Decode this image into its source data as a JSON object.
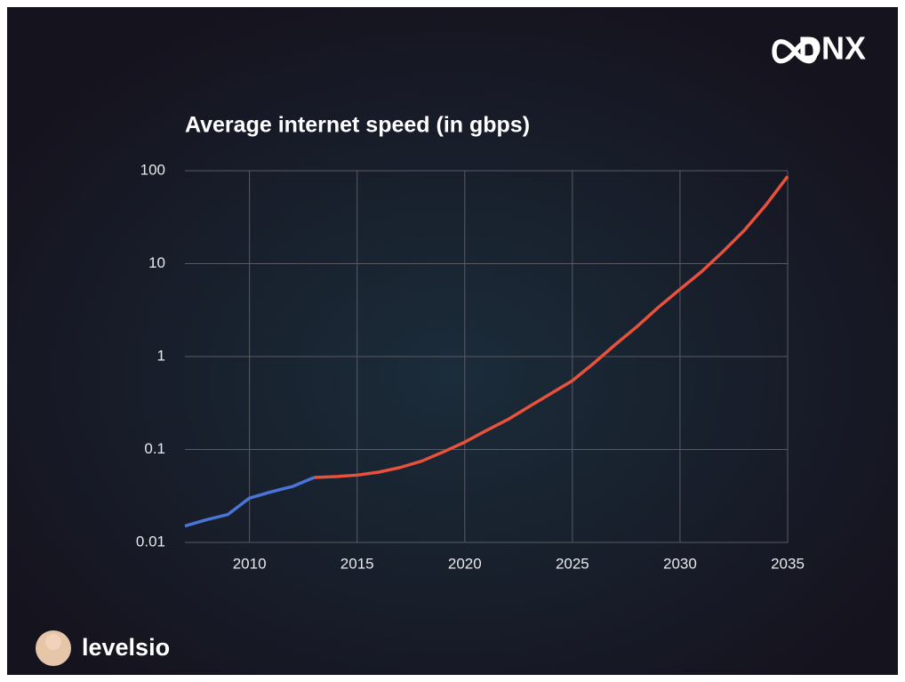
{
  "brand": "DNX",
  "author": "levelsio",
  "chart_data": {
    "type": "line",
    "title": "Average internet speed (in gbps)",
    "xlim": [
      2007,
      2035
    ],
    "xticks": [
      2010,
      2015,
      2020,
      2025,
      2030,
      2035
    ],
    "ylim": [
      0.01,
      100
    ],
    "yticks": [
      0.01,
      0.1,
      1,
      10,
      100
    ],
    "log_y": true,
    "grid": true,
    "series": [
      {
        "color": "#4a74d6",
        "x": [
          2007,
          2008,
          2009,
          2010,
          2011,
          2012,
          2013
        ],
        "values": [
          0.015,
          0.0175,
          0.02,
          0.03,
          0.035,
          0.04,
          0.05
        ]
      },
      {
        "color": "#e8513b",
        "x": [
          2013,
          2014,
          2015,
          2016,
          2017,
          2018,
          2019,
          2020,
          2021,
          2022,
          2023,
          2024,
          2025,
          2026,
          2027,
          2028,
          2029,
          2030,
          2031,
          2032,
          2033,
          2034,
          2035
        ],
        "values": [
          0.05,
          0.051,
          0.053,
          0.057,
          0.064,
          0.075,
          0.094,
          0.12,
          0.16,
          0.21,
          0.29,
          0.4,
          0.55,
          0.85,
          1.35,
          2.1,
          3.4,
          5.3,
          8.2,
          13.5,
          23,
          43,
          87
        ]
      }
    ]
  }
}
